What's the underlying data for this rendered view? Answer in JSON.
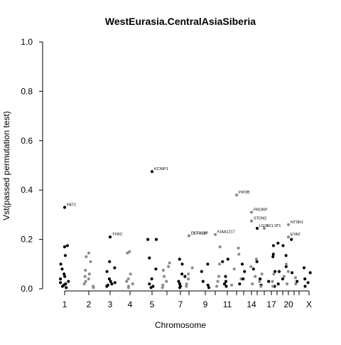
{
  "chart_data": {
    "type": "scatter",
    "title": "WestEurasia.CentralAsiaSiberia",
    "xlabel": "Chromosome",
    "ylabel": "Vst(passed permutation test)",
    "ylim": [
      0,
      1
    ],
    "yticks": [
      "0.0",
      "0.2",
      "0.4",
      "0.6",
      "0.8",
      "1.0"
    ],
    "xtick_labels": [
      {
        "label": "1",
        "x": 1
      },
      {
        "label": "2",
        "x": 2
      },
      {
        "label": "3",
        "x": 3
      },
      {
        "label": "4",
        "x": 4
      },
      {
        "label": "5",
        "x": 5
      },
      {
        "label": "7",
        "x": 7
      },
      {
        "label": "9",
        "x": 9
      },
      {
        "label": "11",
        "x": 11
      },
      {
        "label": "14",
        "x": 14
      },
      {
        "label": "17",
        "x": 17
      },
      {
        "label": "20",
        "x": 20
      },
      {
        "label": "X",
        "x": 23
      }
    ],
    "colors": {
      "odd_chromosome": "#000000",
      "even_chromosome": "#8c8c8c",
      "label_text": "#000000"
    },
    "labeled_points": [
      {
        "gene": "PAT2",
        "chrom": 1,
        "y": 0.33
      },
      {
        "gene": "KCNIP1",
        "chrom": 5,
        "y": 0.475
      },
      {
        "gene": "TFRC",
        "chrom": 3,
        "y": 0.21
      },
      {
        "gene": "DEFA10P",
        "chrom": 8,
        "y": 0.215
      },
      {
        "gene": "DEFA1B",
        "chrom": 8,
        "y": 0.215
      },
      {
        "gene": "KIAA1217",
        "chrom": 10,
        "y": 0.22
      },
      {
        "gene": "PIP2B",
        "chrom": 12,
        "y": 0.38
      },
      {
        "gene": "PRORP",
        "chrom": 14,
        "y": 0.31
      },
      {
        "gene": "STON2",
        "chrom": 14,
        "y": 0.275
      },
      {
        "gene": "LGI1",
        "chrom": 15,
        "y": 0.245
      },
      {
        "gene": "ACL1P1",
        "chrom": 16,
        "y": 0.245
      },
      {
        "gene": "NTSR1",
        "chrom": 20,
        "y": 0.26
      },
      {
        "gene": "EYA2",
        "chrom": 20,
        "y": 0.21
      }
    ],
    "points": [
      {
        "chrom": 1,
        "y": 0.17
      },
      {
        "chrom": 1,
        "y": 0.135
      },
      {
        "chrom": 1,
        "y": 0.1
      },
      {
        "chrom": 1,
        "y": 0.08
      },
      {
        "chrom": 1,
        "y": 0.06
      },
      {
        "chrom": 1,
        "y": 0.05
      },
      {
        "chrom": 1,
        "y": 0.04
      },
      {
        "chrom": 1,
        "y": 0.03
      },
      {
        "chrom": 1,
        "y": 0.02
      },
      {
        "chrom": 1,
        "y": 0.015
      },
      {
        "chrom": 1,
        "y": 0.01
      },
      {
        "chrom": 1,
        "y": 0.175
      },
      {
        "chrom": 1,
        "y": 0.005
      },
      {
        "chrom": 1,
        "y": 0.025
      },
      {
        "chrom": 2,
        "y": 0.145
      },
      {
        "chrom": 2,
        "y": 0.13
      },
      {
        "chrom": 2,
        "y": 0.11
      },
      {
        "chrom": 2,
        "y": 0.075
      },
      {
        "chrom": 2,
        "y": 0.06
      },
      {
        "chrom": 2,
        "y": 0.04
      },
      {
        "chrom": 2,
        "y": 0.03
      },
      {
        "chrom": 2,
        "y": 0.02
      },
      {
        "chrom": 2,
        "y": 0.01
      },
      {
        "chrom": 2,
        "y": 0.005
      },
      {
        "chrom": 2,
        "y": 0.05
      },
      {
        "chrom": 3,
        "y": 0.11
      },
      {
        "chrom": 3,
        "y": 0.085
      },
      {
        "chrom": 3,
        "y": 0.07
      },
      {
        "chrom": 3,
        "y": 0.04
      },
      {
        "chrom": 3,
        "y": 0.03
      },
      {
        "chrom": 3,
        "y": 0.02
      },
      {
        "chrom": 3,
        "y": 0.015
      },
      {
        "chrom": 3,
        "y": 0.01
      },
      {
        "chrom": 3,
        "y": 0.025
      },
      {
        "chrom": 4,
        "y": 0.15
      },
      {
        "chrom": 4,
        "y": 0.145
      },
      {
        "chrom": 4,
        "y": 0.06
      },
      {
        "chrom": 4,
        "y": 0.04
      },
      {
        "chrom": 4,
        "y": 0.03
      },
      {
        "chrom": 4,
        "y": 0.02
      },
      {
        "chrom": 4,
        "y": 0.01
      },
      {
        "chrom": 4,
        "y": 0.005
      },
      {
        "chrom": 5,
        "y": 0.2
      },
      {
        "chrom": 5,
        "y": 0.2
      },
      {
        "chrom": 5,
        "y": 0.125
      },
      {
        "chrom": 5,
        "y": 0.08
      },
      {
        "chrom": 5,
        "y": 0.04
      },
      {
        "chrom": 5,
        "y": 0.02
      },
      {
        "chrom": 5,
        "y": 0.01
      },
      {
        "chrom": 5,
        "y": 0.005
      },
      {
        "chrom": 6,
        "y": 0.105
      },
      {
        "chrom": 6,
        "y": 0.09
      },
      {
        "chrom": 6,
        "y": 0.075
      },
      {
        "chrom": 6,
        "y": 0.05
      },
      {
        "chrom": 6,
        "y": 0.03
      },
      {
        "chrom": 6,
        "y": 0.015
      },
      {
        "chrom": 6,
        "y": 0.005
      },
      {
        "chrom": 7,
        "y": 0.12
      },
      {
        "chrom": 7,
        "y": 0.1
      },
      {
        "chrom": 7,
        "y": 0.06
      },
      {
        "chrom": 7,
        "y": 0.05
      },
      {
        "chrom": 7,
        "y": 0.03
      },
      {
        "chrom": 7,
        "y": 0.02
      },
      {
        "chrom": 7,
        "y": 0.01
      },
      {
        "chrom": 7,
        "y": 0.005
      },
      {
        "chrom": 8,
        "y": 0.085
      },
      {
        "chrom": 8,
        "y": 0.06
      },
      {
        "chrom": 8,
        "y": 0.04
      },
      {
        "chrom": 8,
        "y": 0.02
      },
      {
        "chrom": 8,
        "y": 0.01
      },
      {
        "chrom": 9,
        "y": 0.1
      },
      {
        "chrom": 9,
        "y": 0.07
      },
      {
        "chrom": 9,
        "y": 0.03
      },
      {
        "chrom": 9,
        "y": 0.015
      },
      {
        "chrom": 9,
        "y": 0.005
      },
      {
        "chrom": 10,
        "y": 0.17
      },
      {
        "chrom": 10,
        "y": 0.1
      },
      {
        "chrom": 10,
        "y": 0.05
      },
      {
        "chrom": 10,
        "y": 0.03
      },
      {
        "chrom": 10,
        "y": 0.01
      },
      {
        "chrom": 11,
        "y": 0.12
      },
      {
        "chrom": 11,
        "y": 0.11
      },
      {
        "chrom": 11,
        "y": 0.05
      },
      {
        "chrom": 11,
        "y": 0.03
      },
      {
        "chrom": 11,
        "y": 0.02
      },
      {
        "chrom": 11,
        "y": 0.01
      },
      {
        "chrom": 12,
        "y": 0.165
      },
      {
        "chrom": 12,
        "y": 0.14
      },
      {
        "chrom": 12,
        "y": 0.08
      },
      {
        "chrom": 12,
        "y": 0.04
      },
      {
        "chrom": 12,
        "y": 0.015
      },
      {
        "chrom": 13,
        "y": 0.1
      },
      {
        "chrom": 13,
        "y": 0.07
      },
      {
        "chrom": 13,
        "y": 0.04
      },
      {
        "chrom": 13,
        "y": 0.02
      },
      {
        "chrom": 14,
        "y": 0.12
      },
      {
        "chrom": 14,
        "y": 0.09
      },
      {
        "chrom": 14,
        "y": 0.05
      },
      {
        "chrom": 14,
        "y": 0.02
      },
      {
        "chrom": 15,
        "y": 0.11
      },
      {
        "chrom": 15,
        "y": 0.08
      },
      {
        "chrom": 15,
        "y": 0.04
      },
      {
        "chrom": 15,
        "y": 0.015
      },
      {
        "chrom": 16,
        "y": 0.06
      },
      {
        "chrom": 16,
        "y": 0.03
      },
      {
        "chrom": 16,
        "y": 0.01
      },
      {
        "chrom": 17,
        "y": 0.175
      },
      {
        "chrom": 17,
        "y": 0.14
      },
      {
        "chrom": 17,
        "y": 0.13
      },
      {
        "chrom": 17,
        "y": 0.07
      },
      {
        "chrom": 17,
        "y": 0.03
      },
      {
        "chrom": 17,
        "y": 0.01
      },
      {
        "chrom": 18,
        "y": 0.06
      },
      {
        "chrom": 18,
        "y": 0.03
      },
      {
        "chrom": 18,
        "y": 0.01
      },
      {
        "chrom": 19,
        "y": 0.185
      },
      {
        "chrom": 19,
        "y": 0.175
      },
      {
        "chrom": 19,
        "y": 0.135
      },
      {
        "chrom": 19,
        "y": 0.09
      },
      {
        "chrom": 19,
        "y": 0.07
      },
      {
        "chrom": 19,
        "y": 0.04
      },
      {
        "chrom": 19,
        "y": 0.02
      },
      {
        "chrom": 20,
        "y": 0.1
      },
      {
        "chrom": 20,
        "y": 0.07
      },
      {
        "chrom": 20,
        "y": 0.05
      },
      {
        "chrom": 20,
        "y": 0.02
      },
      {
        "chrom": 21,
        "y": 0.2
      },
      {
        "chrom": 21,
        "y": 0.065
      },
      {
        "chrom": 21,
        "y": 0.03
      },
      {
        "chrom": 22,
        "y": 0.045
      },
      {
        "chrom": 22,
        "y": 0.02
      },
      {
        "chrom": 23,
        "y": 0.085
      },
      {
        "chrom": 23,
        "y": 0.065
      },
      {
        "chrom": 23,
        "y": 0.04
      },
      {
        "chrom": 23,
        "y": 0.025
      },
      {
        "chrom": 23,
        "y": 0.01
      }
    ]
  }
}
